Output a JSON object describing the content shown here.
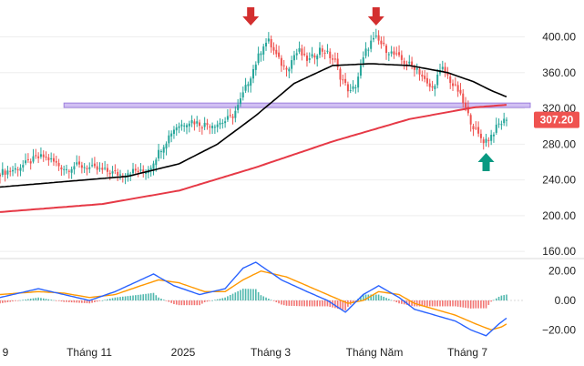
{
  "colors": {
    "up": "#26a69a",
    "down": "#ef5350",
    "ma_short": "#000000",
    "ma_long": "#e63946",
    "zone_fill": "#c9b6f2",
    "zone_border": "#8e6bd8",
    "macd_line": "#2962ff",
    "signal_line": "#ff9800",
    "arrow_down": "#d32f2f",
    "arrow_up": "#089981",
    "price_badge": "#ef5350",
    "grid": "#eeeeee"
  },
  "chart_data": [
    {
      "type": "candlestick",
      "x_ticks": [
        "9",
        "Tháng 11",
        "2025",
        "Tháng 3",
        "Tháng Năm",
        "Tháng 7"
      ],
      "y_ticks": [
        "400.00",
        "360.00",
        "320.00",
        "280.00",
        "240.00",
        "200.00",
        "160.00"
      ],
      "ylim": [
        155,
        425
      ],
      "last_price": "307.20",
      "price_path": [
        [
          0,
          248
        ],
        [
          6,
          252
        ],
        [
          10,
          258
        ],
        [
          14,
          264
        ],
        [
          17,
          266
        ],
        [
          20,
          262
        ],
        [
          23,
          256
        ],
        [
          26,
          252
        ],
        [
          29,
          256
        ],
        [
          33,
          255
        ],
        [
          37,
          252
        ],
        [
          41,
          250
        ],
        [
          44,
          248
        ],
        [
          47,
          246
        ],
        [
          50,
          249
        ],
        [
          53,
          250
        ],
        [
          56,
          248
        ],
        [
          59,
          256
        ],
        [
          61,
          266
        ],
        [
          63,
          276
        ],
        [
          65,
          284
        ],
        [
          67,
          294
        ],
        [
          69,
          300
        ],
        [
          71,
          302
        ],
        [
          73,
          305
        ],
        [
          75,
          306
        ],
        [
          77,
          304
        ],
        [
          79,
          302
        ],
        [
          82,
          302
        ],
        [
          85,
          303
        ],
        [
          88,
          306
        ],
        [
          91,
          312
        ],
        [
          93,
          322
        ],
        [
          95,
          336
        ],
        [
          97,
          350
        ],
        [
          99,
          364
        ],
        [
          101,
          378
        ],
        [
          103,
          392
        ],
        [
          105,
          395
        ],
        [
          107,
          384
        ],
        [
          109,
          374
        ],
        [
          111,
          366
        ],
        [
          113,
          368
        ],
        [
          115,
          380
        ],
        [
          117,
          384
        ],
        [
          119,
          376
        ],
        [
          121,
          374
        ],
        [
          123,
          380
        ],
        [
          125,
          386
        ],
        [
          127,
          384
        ],
        [
          129,
          378
        ],
        [
          131,
          372
        ],
        [
          133,
          356
        ],
        [
          135,
          346
        ],
        [
          137,
          338
        ],
        [
          139,
          346
        ],
        [
          141,
          366
        ],
        [
          143,
          384
        ],
        [
          145,
          394
        ],
        [
          147,
          398
        ],
        [
          149,
          392
        ],
        [
          151,
          386
        ],
        [
          153,
          382
        ],
        [
          155,
          378
        ],
        [
          157,
          374
        ],
        [
          159,
          370
        ],
        [
          161,
          368
        ],
        [
          163,
          365
        ],
        [
          165,
          356
        ],
        [
          167,
          346
        ],
        [
          169,
          342
        ],
        [
          171,
          356
        ],
        [
          173,
          364
        ],
        [
          175,
          356
        ],
        [
          177,
          346
        ],
        [
          179,
          340
        ],
        [
          181,
          326
        ],
        [
          183,
          312
        ],
        [
          185,
          300
        ],
        [
          187,
          290
        ],
        [
          189,
          284
        ],
        [
          191,
          286
        ],
        [
          193,
          294
        ],
        [
          195,
          302
        ],
        [
          197,
          306
        ],
        [
          198,
          307.2
        ]
      ],
      "ma_short": [
        [
          0,
          232
        ],
        [
          25,
          238
        ],
        [
          50,
          244
        ],
        [
          70,
          258
        ],
        [
          85,
          280
        ],
        [
          100,
          312
        ],
        [
          115,
          348
        ],
        [
          130,
          368
        ],
        [
          145,
          370
        ],
        [
          160,
          368
        ],
        [
          175,
          360
        ],
        [
          185,
          350
        ],
        [
          192,
          340
        ],
        [
          198,
          333
        ]
      ],
      "ma_long": [
        [
          0,
          204
        ],
        [
          40,
          213
        ],
        [
          70,
          228
        ],
        [
          100,
          254
        ],
        [
          130,
          283
        ],
        [
          160,
          308
        ],
        [
          185,
          321
        ],
        [
          198,
          324
        ]
      ],
      "resistance_zone": [
        321,
        326
      ],
      "markers": [
        {
          "type": "sell",
          "x": 98
        },
        {
          "type": "sell",
          "x": 147
        },
        {
          "type": "buy",
          "x": 190
        }
      ]
    },
    {
      "type": "macd",
      "y_ticks": [
        "20.00",
        "0.00",
        "-20.00"
      ],
      "ylim": [
        -26,
        26
      ],
      "macd_line": [
        [
          0,
          2
        ],
        [
          15,
          8
        ],
        [
          25,
          4
        ],
        [
          35,
          0
        ],
        [
          45,
          6
        ],
        [
          55,
          14
        ],
        [
          60,
          18
        ],
        [
          68,
          10
        ],
        [
          78,
          4
        ],
        [
          88,
          8
        ],
        [
          95,
          22
        ],
        [
          100,
          26
        ],
        [
          110,
          14
        ],
        [
          120,
          6
        ],
        [
          128,
          0
        ],
        [
          135,
          -8
        ],
        [
          142,
          4
        ],
        [
          148,
          10
        ],
        [
          156,
          2
        ],
        [
          162,
          -6
        ],
        [
          170,
          -10
        ],
        [
          178,
          -14
        ],
        [
          184,
          -20
        ],
        [
          190,
          -24
        ],
        [
          195,
          -16
        ],
        [
          198,
          -12
        ]
      ],
      "signal_line": [
        [
          0,
          4
        ],
        [
          15,
          6
        ],
        [
          25,
          5
        ],
        [
          35,
          2
        ],
        [
          45,
          4
        ],
        [
          55,
          10
        ],
        [
          62,
          14
        ],
        [
          70,
          12
        ],
        [
          80,
          6
        ],
        [
          88,
          6
        ],
        [
          95,
          14
        ],
        [
          102,
          20
        ],
        [
          112,
          16
        ],
        [
          120,
          10
        ],
        [
          128,
          4
        ],
        [
          136,
          -2
        ],
        [
          142,
          0
        ],
        [
          148,
          6
        ],
        [
          156,
          4
        ],
        [
          162,
          -2
        ],
        [
          170,
          -6
        ],
        [
          178,
          -10
        ],
        [
          186,
          -16
        ],
        [
          192,
          -20
        ],
        [
          196,
          -18
        ],
        [
          198,
          -16
        ]
      ]
    }
  ]
}
